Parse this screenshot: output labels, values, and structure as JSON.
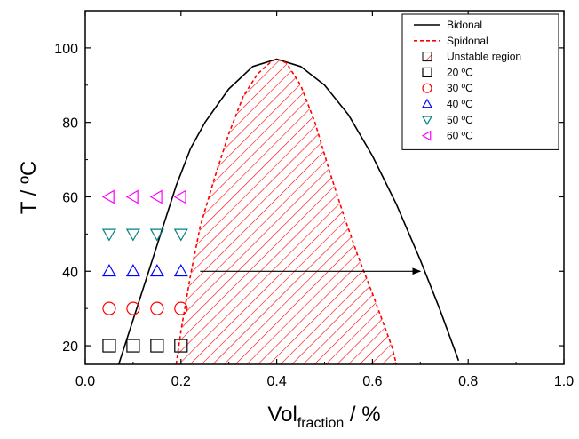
{
  "chart_data": {
    "type": "line",
    "xlabel": "Vol",
    "xlabel_subscript": "fraction",
    "xlabel_suffix": " / %",
    "ylabel": "T / ºC",
    "xlim": [
      0.0,
      1.0
    ],
    "ylim": [
      15,
      110
    ],
    "x_ticks": [
      0.0,
      0.2,
      0.4,
      0.6,
      0.8,
      1.0
    ],
    "x_tick_labels": [
      "0.0",
      "0.2",
      "0.4",
      "0.6",
      "0.8",
      "1.0"
    ],
    "y_ticks": [
      20,
      40,
      60,
      80,
      100
    ],
    "y_tick_labels": [
      "20",
      "40",
      "60",
      "80",
      "100"
    ],
    "grid": false,
    "legend_position": "top-right",
    "legend": [
      {
        "label": "Bidonal",
        "kind": "solid-line",
        "color": "#000000"
      },
      {
        "label": "Spidonal",
        "kind": "dashed-line",
        "color": "#ff0000"
      },
      {
        "label": "Unstable region",
        "kind": "hatch",
        "color": "#ff0000"
      },
      {
        "label": "20 ºC",
        "kind": "square",
        "color": "#000000"
      },
      {
        "label": "30 ºC",
        "kind": "circle",
        "color": "#ff0000"
      },
      {
        "label": "40 ºC",
        "kind": "triangle-up",
        "color": "#0000ff"
      },
      {
        "label": "50 ºC",
        "kind": "triangle-down",
        "color": "#008080"
      },
      {
        "label": "60 ºC",
        "kind": "triangle-left",
        "color": "#ff00ff"
      }
    ],
    "series": [
      {
        "name": "Bidonal",
        "kind": "line",
        "color": "#000000",
        "x": [
          0.07,
          0.1,
          0.13,
          0.16,
          0.19,
          0.22,
          0.25,
          0.3,
          0.35,
          0.4,
          0.45,
          0.5,
          0.55,
          0.6,
          0.65,
          0.7,
          0.74,
          0.78
        ],
        "y": [
          15,
          27,
          39,
          51,
          63,
          73,
          80,
          89,
          95,
          97,
          95,
          90,
          82,
          71,
          58,
          43,
          30,
          16
        ]
      },
      {
        "name": "Spidonal",
        "kind": "dashed-line",
        "color": "#ff0000",
        "x": [
          0.19,
          0.2,
          0.22,
          0.24,
          0.27,
          0.3,
          0.33,
          0.36,
          0.39,
          0.4,
          0.42,
          0.45,
          0.48,
          0.51,
          0.54,
          0.57,
          0.6,
          0.62,
          0.64,
          0.65
        ],
        "y": [
          15,
          24,
          39,
          52,
          65,
          77,
          87,
          93,
          96.5,
          97,
          96,
          90,
          80,
          67,
          55,
          44,
          34,
          27,
          20,
          15
        ]
      },
      {
        "name": "20 ºC",
        "kind": "square",
        "color": "#000000",
        "x": [
          0.05,
          0.1,
          0.15,
          0.2
        ],
        "y": [
          20,
          20,
          20,
          20
        ]
      },
      {
        "name": "30 ºC",
        "kind": "circle",
        "color": "#ff0000",
        "x": [
          0.05,
          0.1,
          0.15,
          0.2
        ],
        "y": [
          30,
          30,
          30,
          30
        ]
      },
      {
        "name": "40 ºC",
        "kind": "triangle-up",
        "color": "#0000ff",
        "x": [
          0.05,
          0.1,
          0.15,
          0.2
        ],
        "y": [
          40,
          40,
          40,
          40
        ]
      },
      {
        "name": "50 ºC",
        "kind": "triangle-down",
        "color": "#008080",
        "x": [
          0.05,
          0.1,
          0.15,
          0.2
        ],
        "y": [
          50,
          50,
          50,
          50
        ]
      },
      {
        "name": "60 ºC",
        "kind": "triangle-left",
        "color": "#ff00ff",
        "x": [
          0.05,
          0.1,
          0.15,
          0.2
        ],
        "y": [
          60,
          60,
          60,
          60
        ]
      }
    ],
    "annotations": [
      {
        "kind": "arrow",
        "x_from": 0.24,
        "x_to": 0.7,
        "y": 40,
        "color": "#000000"
      }
    ]
  }
}
